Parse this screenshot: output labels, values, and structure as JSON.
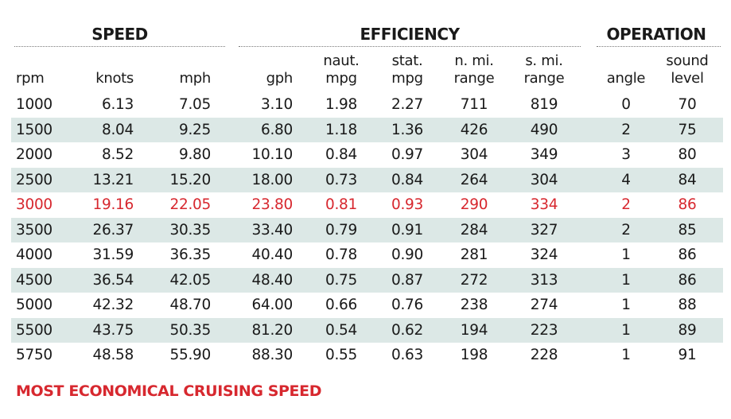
{
  "groups": {
    "speed": "SPEED",
    "efficiency": "EFFICIENCY",
    "operation": "OPERATION"
  },
  "columns": {
    "rpm": [
      "rpm"
    ],
    "knots": [
      "knots"
    ],
    "mph": [
      "mph"
    ],
    "gph": [
      "gph"
    ],
    "naut_mpg": [
      "naut.",
      "mpg"
    ],
    "stat_mpg": [
      "stat.",
      "mpg"
    ],
    "n_mi_range": [
      "n. mi.",
      "range"
    ],
    "s_mi_range": [
      "s. mi.",
      "range"
    ],
    "angle": [
      "angle"
    ],
    "sound_level": [
      "sound",
      "level"
    ]
  },
  "footnote": "MOST ECONOMICAL CRUISING SPEED",
  "colors": {
    "highlight": "#d7282f",
    "row_shade": "#dce8e6",
    "text": "#1a1a1a"
  },
  "chart_data": {
    "type": "table",
    "highlight_row_rpm": "3000",
    "header": [
      "rpm",
      "knots",
      "mph",
      "gph",
      "naut. mpg",
      "stat. mpg",
      "n. mi. range",
      "s. mi. range",
      "angle",
      "sound level"
    ],
    "rows": [
      [
        "1000",
        "6.13",
        "7.05",
        "3.10",
        "1.98",
        "2.27",
        "711",
        "819",
        "0",
        "70"
      ],
      [
        "1500",
        "8.04",
        "9.25",
        "6.80",
        "1.18",
        "1.36",
        "426",
        "490",
        "2",
        "75"
      ],
      [
        "2000",
        "8.52",
        "9.80",
        "10.10",
        "0.84",
        "0.97",
        "304",
        "349",
        "3",
        "80"
      ],
      [
        "2500",
        "13.21",
        "15.20",
        "18.00",
        "0.73",
        "0.84",
        "264",
        "304",
        "4",
        "84"
      ],
      [
        "3000",
        "19.16",
        "22.05",
        "23.80",
        "0.81",
        "0.93",
        "290",
        "334",
        "2",
        "86"
      ],
      [
        "3500",
        "26.37",
        "30.35",
        "33.40",
        "0.79",
        "0.91",
        "284",
        "327",
        "2",
        "85"
      ],
      [
        "4000",
        "31.59",
        "36.35",
        "40.40",
        "0.78",
        "0.90",
        "281",
        "324",
        "1",
        "86"
      ],
      [
        "4500",
        "36.54",
        "42.05",
        "48.40",
        "0.75",
        "0.87",
        "272",
        "313",
        "1",
        "86"
      ],
      [
        "5000",
        "42.32",
        "48.70",
        "64.00",
        "0.66",
        "0.76",
        "238",
        "274",
        "1",
        "88"
      ],
      [
        "5500",
        "43.75",
        "50.35",
        "81.20",
        "0.54",
        "0.62",
        "194",
        "223",
        "1",
        "89"
      ],
      [
        "5750",
        "48.58",
        "55.90",
        "88.30",
        "0.55",
        "0.63",
        "198",
        "228",
        "1",
        "91"
      ]
    ]
  }
}
